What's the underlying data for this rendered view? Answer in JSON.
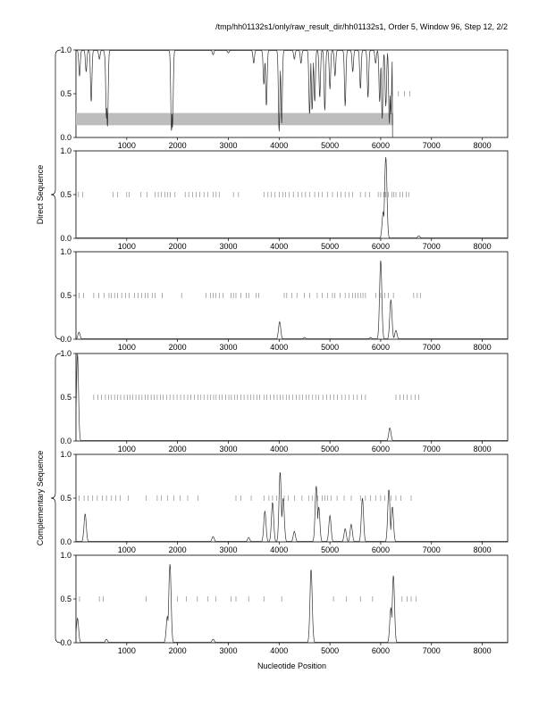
{
  "header": "/tmp/hh01132s1/only/raw_result_dir/hh01132s1, Order 5, Window 96, Step 12, 2/2",
  "groups": [
    {
      "label": "Direct Sequence"
    },
    {
      "label": "Complementary Sequence"
    }
  ],
  "xlabel": "Nucleotide Position",
  "chart_data": {
    "type": "line",
    "xlim": [
      0,
      8500
    ],
    "ylim": [
      0,
      1
    ],
    "x_ticks": [
      1000,
      2000,
      3000,
      4000,
      5000,
      6000,
      7000,
      8000
    ],
    "x_tick_labels": [
      "1000",
      "2000",
      "3000",
      "4000",
      "5000",
      "6000",
      "7000",
      "8000"
    ],
    "y_ticks": [
      0,
      0.5,
      1
    ],
    "y_tick_labels": [
      "0.0",
      "0.5",
      "1.0"
    ],
    "panels": [
      {
        "group": 0,
        "band": [
          0.14,
          0.28,
          0,
          6250
        ],
        "ticks_y": 0.5,
        "ticks": [
          6230,
          6350,
          6470,
          6570
        ],
        "peaks": [
          [
            20,
            1,
            0.6,
            "down"
          ],
          [
            70,
            0.7,
            0.9,
            "down"
          ],
          [
            120,
            1,
            0.12,
            "down"
          ],
          [
            200,
            0.75,
            0.8,
            "down"
          ],
          [
            300,
            0.4,
            0.6,
            "down"
          ],
          [
            460,
            0.9,
            0.92,
            "down"
          ],
          [
            580,
            0.88,
            0.88,
            "down"
          ],
          [
            600,
            0.2,
            0.35,
            "down"
          ],
          [
            620,
            0.1,
            0.2,
            "down"
          ],
          [
            1880,
            0.05,
            0.35,
            "down"
          ],
          [
            1900,
            0.1,
            0.25,
            "down"
          ],
          [
            2700,
            0.95,
            0.92,
            "down"
          ],
          [
            3000,
            0.97,
            0.95,
            "down"
          ],
          [
            3500,
            0.85,
            0.92,
            "down"
          ],
          [
            3700,
            0.6,
            0.7,
            "down"
          ],
          [
            3750,
            0.35,
            0.45,
            "down"
          ],
          [
            4000,
            0.05,
            0.3,
            "down"
          ],
          [
            4050,
            0.15,
            0.35,
            "down"
          ],
          [
            4300,
            0.9,
            0.92,
            "down"
          ],
          [
            4430,
            0.85,
            0.93,
            "down"
          ],
          [
            4600,
            0.25,
            0.6,
            "down"
          ],
          [
            4650,
            0.3,
            0.55,
            "down"
          ],
          [
            4700,
            0.4,
            0.75,
            "down"
          ],
          [
            4800,
            0.45,
            0.55,
            "down"
          ],
          [
            4900,
            0.3,
            0.55,
            "down"
          ],
          [
            5000,
            0.55,
            0.6,
            "down"
          ],
          [
            5100,
            0.7,
            0.7,
            "down"
          ],
          [
            5300,
            0.35,
            0.5,
            "down"
          ],
          [
            5450,
            0.75,
            0.7,
            "down"
          ],
          [
            5600,
            0.55,
            0.5,
            "down"
          ],
          [
            5750,
            0.45,
            0.5,
            "down"
          ],
          [
            5900,
            0.85,
            0.8,
            "down"
          ],
          [
            5980,
            0.4,
            0.5,
            "down"
          ],
          [
            6030,
            0.2,
            0.3,
            "down"
          ],
          [
            6100,
            0.35,
            0.4,
            "down"
          ],
          [
            6170,
            0.15,
            0.25,
            "down"
          ],
          [
            6200,
            0.25,
            0.3,
            "down"
          ]
        ],
        "baseline_end": 6230,
        "baseline": 1
      },
      {
        "group": 0,
        "ticks_y": 0.5,
        "ticks": [
          50,
          130,
          730,
          820,
          1000,
          1050,
          1280,
          1400,
          1560,
          1620,
          1680,
          1750,
          1800,
          1860,
          1950,
          2150,
          2220,
          2300,
          2370,
          2440,
          2520,
          2600,
          2700,
          2760,
          2820,
          3100,
          3200,
          3700,
          3780,
          3850,
          3920,
          4000,
          4070,
          4130,
          4200,
          4280,
          4370,
          4450,
          4520,
          4600,
          4700,
          4780,
          4850,
          4950,
          5050,
          5150,
          5220,
          5300,
          5380,
          5450,
          5600,
          5700,
          5780,
          5950,
          6000,
          6060,
          6100,
          6150,
          6220,
          6260,
          6300,
          6380,
          6430,
          6500,
          6550
        ],
        "peaks": [
          [
            6100,
            0.93,
            0.9,
            "up"
          ],
          [
            6050,
            0.3,
            0.5,
            "up"
          ],
          [
            6750,
            0.03,
            0.5,
            "up"
          ]
        ],
        "baseline": 0
      },
      {
        "group": 0,
        "ticks_y": 0.5,
        "ticks": [
          60,
          150,
          350,
          450,
          550,
          650,
          700,
          760,
          820,
          900,
          980,
          1050,
          1150,
          1220,
          1290,
          1360,
          1420,
          1500,
          1560,
          1700,
          2080,
          2560,
          2650,
          2700,
          2750,
          2820,
          2900,
          3050,
          3100,
          3150,
          3250,
          3350,
          3400,
          3550,
          3600,
          4100,
          4150,
          4250,
          4350,
          4500,
          4600,
          4750,
          4850,
          4950,
          5050,
          5100,
          5200,
          5300,
          5380,
          5450,
          5500,
          5550,
          5600,
          5650,
          5700,
          5900,
          6000,
          6080,
          6150,
          6250,
          6650,
          6720,
          6780
        ],
        "peaks": [
          [
            60,
            0.08,
            0.4,
            "up"
          ],
          [
            4010,
            0.2,
            0.6,
            "up"
          ],
          [
            6000,
            0.9,
            0.9,
            "up"
          ],
          [
            6200,
            0.45,
            0.6,
            "up"
          ],
          [
            6300,
            0.1,
            0.5,
            "up"
          ],
          [
            4500,
            0.02,
            0.5,
            "up"
          ],
          [
            5800,
            0.02,
            0.5,
            "up"
          ]
        ],
        "baseline": 0
      },
      {
        "group": 1,
        "ticks_y": 0.5,
        "ticks": [
          350,
          430,
          500,
          580,
          640,
          700,
          760,
          820,
          880,
          950,
          1010,
          1060,
          1120,
          1180,
          1240,
          1300,
          1360,
          1420,
          1480,
          1540,
          1600,
          1660,
          1720,
          1790,
          1850,
          1920,
          1990,
          2060,
          2130,
          2200,
          2260,
          2330,
          2400,
          2460,
          2520,
          2590,
          2650,
          2710,
          2760,
          2820,
          2880,
          2950,
          3010,
          3060,
          3120,
          3180,
          3250,
          3310,
          3380,
          3440,
          3500,
          3560,
          3620,
          3700,
          3760,
          3830,
          3900,
          3960,
          4020,
          4080,
          4140,
          4200,
          4270,
          4340,
          4400,
          4460,
          4530,
          4590,
          4660,
          4720,
          4780,
          4860,
          4940,
          5010,
          5080,
          5150,
          5230,
          5300,
          5380,
          5460,
          5540,
          5620,
          5700,
          6300,
          6380,
          6450,
          6520,
          6600,
          6680,
          6750
        ],
        "peaks": [
          [
            30,
            1,
            0.6,
            "down2"
          ],
          [
            6180,
            0.15,
            0.6,
            "up"
          ]
        ],
        "baseline": 0
      },
      {
        "group": 1,
        "ticks_y": 0.5,
        "ticks": [
          60,
          160,
          240,
          330,
          420,
          520,
          600,
          700,
          780,
          870,
          1030,
          1380,
          1600,
          1680,
          1800,
          1930,
          2050,
          2200,
          2400,
          3150,
          3250,
          3450,
          3700,
          3800,
          3870,
          3950,
          4100,
          4180,
          4300,
          4450,
          4580,
          4650,
          4760,
          4850,
          4900,
          4950,
          5020,
          5140,
          5280,
          5420,
          5600,
          5700,
          5800,
          5900,
          6000,
          6080,
          6200,
          6300,
          6400,
          6600
        ],
        "peaks": [
          [
            180,
            0.32,
            0.6,
            "up"
          ],
          [
            3720,
            0.35,
            0.6,
            "up"
          ],
          [
            3870,
            0.45,
            0.6,
            "up"
          ],
          [
            4020,
            0.8,
            0.6,
            "up"
          ],
          [
            4080,
            0.5,
            0.6,
            "up"
          ],
          [
            4300,
            0.12,
            0.5,
            "up"
          ],
          [
            4730,
            0.64,
            0.5,
            "up"
          ],
          [
            4780,
            0.4,
            0.5,
            "up"
          ],
          [
            5000,
            0.3,
            0.5,
            "up"
          ],
          [
            5300,
            0.15,
            0.5,
            "up"
          ],
          [
            5420,
            0.2,
            0.5,
            "up"
          ],
          [
            5640,
            0.5,
            0.5,
            "up"
          ],
          [
            6160,
            0.6,
            0.6,
            "up"
          ],
          [
            6230,
            0.4,
            0.6,
            "up"
          ],
          [
            2700,
            0.06,
            0.6,
            "up"
          ],
          [
            3400,
            0.05,
            0.6,
            "up"
          ]
        ],
        "baseline": 0
      },
      {
        "group": 1,
        "ticks_y": 0.5,
        "ticks": [
          70,
          460,
          540,
          1380,
          2000,
          2170,
          2390,
          2600,
          2750,
          3050,
          3150,
          3400,
          3700,
          4050,
          5070,
          5320,
          5600,
          5840,
          6420,
          6520,
          6600,
          6700
        ],
        "peaks": [
          [
            30,
            0.28,
            0.6,
            "up"
          ],
          [
            1850,
            0.9,
            0.9,
            "up"
          ],
          [
            1800,
            0.3,
            0.7,
            "up"
          ],
          [
            4630,
            0.84,
            0.7,
            "up"
          ],
          [
            6250,
            0.77,
            0.9,
            "up"
          ],
          [
            6200,
            0.4,
            0.8,
            "up"
          ],
          [
            600,
            0.04,
            0.6,
            "up"
          ],
          [
            2700,
            0.04,
            0.5,
            "up"
          ]
        ],
        "baseline": 0
      }
    ]
  }
}
